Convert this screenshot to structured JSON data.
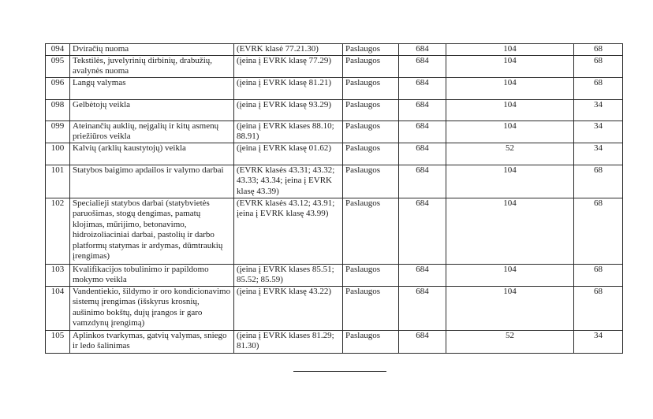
{
  "colors": {
    "background": "#ffffff",
    "text": "#1c1c1c",
    "border": "#2a2a2a"
  },
  "table": {
    "rows": [
      {
        "code": "094",
        "activity": "Dviračių nuoma",
        "evrk": "(EVRK klasė 77.21.30)",
        "category": "Paslaugos",
        "value_a": "684",
        "value_b": "104",
        "value_c": "68"
      },
      {
        "code": "095",
        "activity": "Tekstilės, juvelyrinių dirbinių, drabužių, avalynės nuoma",
        "evrk": "(įeina į EVRK klasę 77.29)",
        "category": "Paslaugos",
        "value_a": "684",
        "value_b": "104",
        "value_c": "68"
      },
      {
        "code": "096",
        "activity": "Langų valymas",
        "evrk": "(įeina į EVRK klasę 81.21)",
        "category": "Paslaugos",
        "value_a": "684",
        "value_b": "104",
        "value_c": "68"
      },
      {
        "code": "098",
        "activity": "Gelbėtojų veikla",
        "evrk": "(įeina į EVRK klasę 93.29)",
        "category": "Paslaugos",
        "value_a": "684",
        "value_b": "104",
        "value_c": "34"
      },
      {
        "code": "099",
        "activity": "Ateinančių auklių, neįgalių ir kitų asmenų priežiūros veikla",
        "evrk": "(įeina į EVRK klases 88.10; 88.91)",
        "category": "Paslaugos",
        "value_a": "684",
        "value_b": "104",
        "value_c": "34"
      },
      {
        "code": "100",
        "activity": "Kalvių (arklių kaustytojų) veikla",
        "evrk": "(įeina į EVRK klasę 01.62)",
        "category": "Paslaugos",
        "value_a": "684",
        "value_b": "52",
        "value_c": "34"
      },
      {
        "code": "101",
        "activity": "Statybos baigimo apdailos ir valymo darbai",
        "evrk": "(EVRK klasės 43.31; 43.32; 43.33; 43.34; įeina į EVRK klasę 43.39)",
        "category": "Paslaugos",
        "value_a": "684",
        "value_b": "104",
        "value_c": "68"
      },
      {
        "code": "102",
        "activity": "Specialieji statybos darbai (statybvietės paruošimas, stogų dengimas, pamatų klojimas, mūrijimo, betonavimo, hidroizoliaciniai darbai, pastolių ir darbo platformų statymas ir ardymas, dūmtraukių įrengimas)",
        "evrk": "(EVRK klasės 43.12; 43.91; įeina į EVRK klasę 43.99)",
        "category": "Paslaugos",
        "value_a": "684",
        "value_b": "104",
        "value_c": "68"
      },
      {
        "code": "103",
        "activity": "Kvalifikacijos tobulinimo ir papildomo mokymo veikla",
        "evrk": "(įeina į EVRK klases 85.51; 85.52; 85.59)",
        "category": "Paslaugos",
        "value_a": "684",
        "value_b": "104",
        "value_c": "68"
      },
      {
        "code": "104",
        "activity": "Vandentiekio, šildymo ir oro kondicionavimo sistemų įrengimas (išskyrus krosnių, aušinimo bokštų, dujų įrangos ir garo vamzdynų įrengimą)",
        "evrk": "(įeina į EVRK klasę 43.22)",
        "category": "Paslaugos",
        "value_a": "684",
        "value_b": "104",
        "value_c": "68"
      },
      {
        "code": "105",
        "activity": "Aplinkos tvarkymas, gatvių valymas, sniego ir ledo šalinimas",
        "evrk": "(įeina į EVRK klases 81.29; 81.30)",
        "category": "Paslaugos",
        "value_a": "684",
        "value_b": "52",
        "value_c": "34"
      }
    ]
  }
}
